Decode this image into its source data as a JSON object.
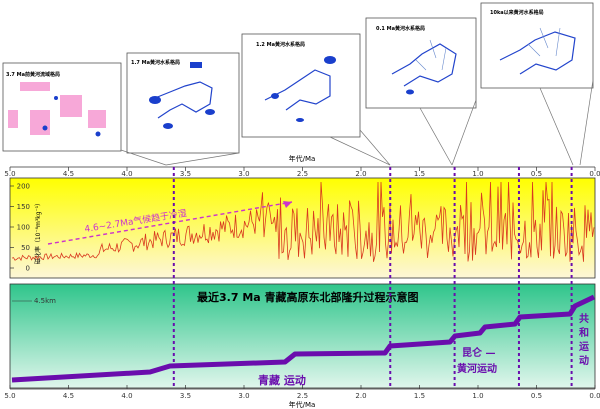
{
  "maps": [
    {
      "title": "3.7 Ma前黄河流域格局"
    },
    {
      "title": "1.7 Ma黄河水系格局"
    },
    {
      "title": "1.2 Ma黄河水系格局"
    },
    {
      "title": "0.1 Ma黄河水系格局"
    },
    {
      "title": "10ka以来黄河水系格局"
    }
  ],
  "top_axis": {
    "label": "年代/Ma",
    "ticks": [
      "5.0",
      "4.5",
      "4.0",
      "3.5",
      "3.0",
      "2.5",
      "2.0",
      "1.5",
      "1.0",
      "0.5",
      "0.0"
    ]
  },
  "bottom_axis": {
    "label": "年代/Ma",
    "ticks": [
      "5.0",
      "4.5",
      "4.0",
      "3.5",
      "3.0",
      "2.5",
      "2.0",
      "1.5",
      "1.0",
      "0.5",
      "0.0"
    ]
  },
  "upper_panel": {
    "ylabel": "磁化率（10⁻⁸m³kg⁻¹）",
    "yticks": [
      "0",
      "50",
      "100",
      "150",
      "200"
    ],
    "annotation": "4.6~2.7Ma气候趋于冷湿",
    "colors": {
      "top": "#ffff00",
      "bottom": "#fdf6d8",
      "curve": "#d93a1f",
      "arrow": "#cc33cc"
    }
  },
  "lower_panel": {
    "title": "最近3.7 Ma 青藏高原东北部隆升过程示意图",
    "elevation_label": "4.5km",
    "labels": {
      "qingzang": "青藏 运动",
      "kunlun_1": "昆仑 —",
      "kunlun_2": "黄河运动",
      "gonghe_1": "共",
      "gonghe_2": "和",
      "gonghe_3": "运",
      "gonghe_4": "动"
    },
    "colors": {
      "top": "#2fc58b",
      "bottom": "#e0f6ec",
      "line": "#6a0dad",
      "text": "#6a0dad"
    }
  },
  "events_ma": [
    3.6,
    1.75,
    1.2,
    0.65,
    0.2
  ]
}
